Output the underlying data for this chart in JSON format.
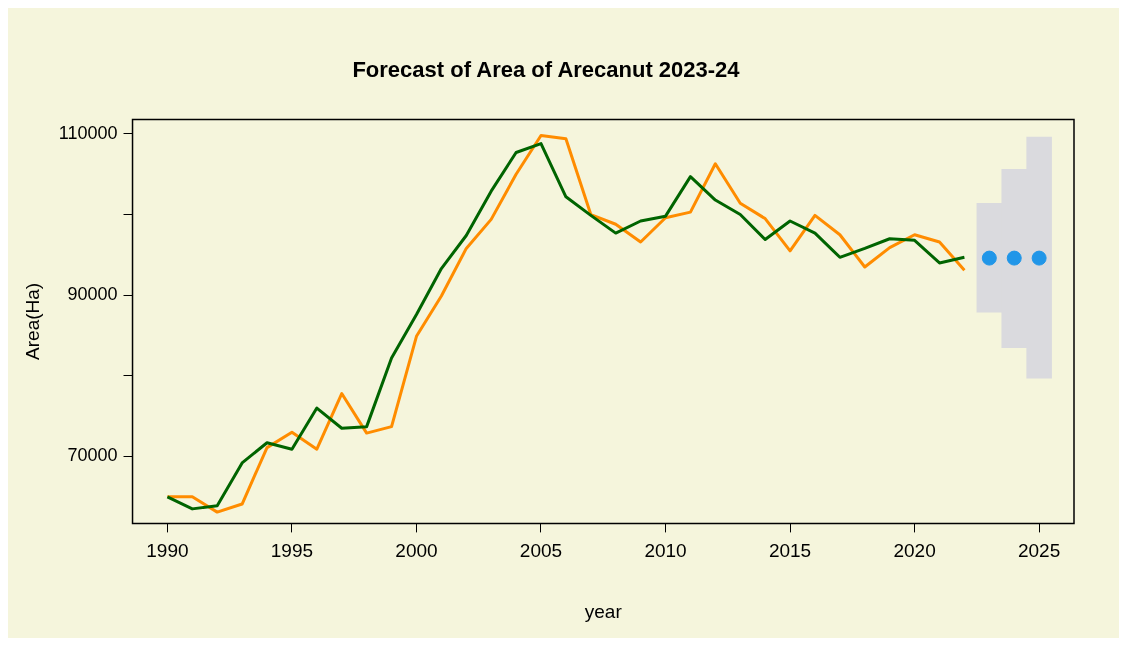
{
  "chart_data": {
    "type": "line",
    "title": "Forecast of Area of Arecanut 2023-24",
    "xlabel": "year",
    "ylabel": "Area(Ha)",
    "xlim": [
      1988.6,
      2026.4
    ],
    "xticks": [
      1990,
      1995,
      2000,
      2005,
      2010,
      2015,
      2020,
      2025
    ],
    "ylim": [
      61700,
      111800
    ],
    "yticks": [
      70000,
      {
        "value": 80000,
        "label": null
      },
      90000,
      {
        "value": 100000,
        "label": null
      },
      110000
    ],
    "grid": false,
    "legend": false,
    "series": [
      {
        "color": "#006400",
        "marker": "none",
        "x": [
          1990,
          1991,
          1992,
          1993,
          1994,
          1995,
          1996,
          1997,
          1998,
          1999,
          2000,
          2001,
          2002,
          2003,
          2004,
          2005,
          2006,
          2007,
          2008,
          2009,
          2010,
          2011,
          2012,
          2013,
          2014,
          2015,
          2016,
          2017,
          2018,
          2019,
          2020,
          2021,
          2022
        ],
        "values": [
          65000,
          63500,
          63900,
          69200,
          71700,
          70900,
          76000,
          73500,
          73700,
          82200,
          87600,
          93300,
          97400,
          102900,
          107700,
          108800,
          102200,
          99900,
          97700,
          99200,
          99800,
          104700,
          101800,
          100000,
          96900,
          99200,
          97700,
          94700,
          95800,
          97000,
          96800,
          94000,
          94700
        ]
      },
      {
        "color": "#ff8c00",
        "marker": "none",
        "x": [
          1990,
          1991,
          1992,
          1993,
          1994,
          1995,
          1996,
          1997,
          1998,
          1999,
          2000,
          2001,
          2002,
          2003,
          2004,
          2005,
          2006,
          2007,
          2008,
          2009,
          2010,
          2011,
          2012,
          2013,
          2014,
          2015,
          2016,
          2017,
          2018,
          2019,
          2020,
          2021,
          2022
        ],
        "values": [
          65000,
          65000,
          63100,
          64100,
          71100,
          73000,
          70900,
          77800,
          72900,
          73700,
          84900,
          89900,
          95800,
          99400,
          105000,
          109800,
          109400,
          100000,
          98800,
          96600,
          99600,
          100300,
          106300,
          101400,
          99500,
          95500,
          99900,
          97500,
          93500,
          95900,
          97500,
          96600,
          93100
        ]
      },
      {
        "type": "bar",
        "color": "#dadade",
        "x": [
          2023,
          2024,
          2025
        ],
        "base": [
          87900,
          83500,
          79700
        ],
        "values": [
          13500,
          22100,
          29900
        ]
      },
      {
        "type": "scatter",
        "color": "#2196e8",
        "marker": "circle",
        "x": [
          2023,
          2024,
          2025
        ],
        "values": [
          94600,
          94600,
          94600
        ]
      }
    ]
  }
}
